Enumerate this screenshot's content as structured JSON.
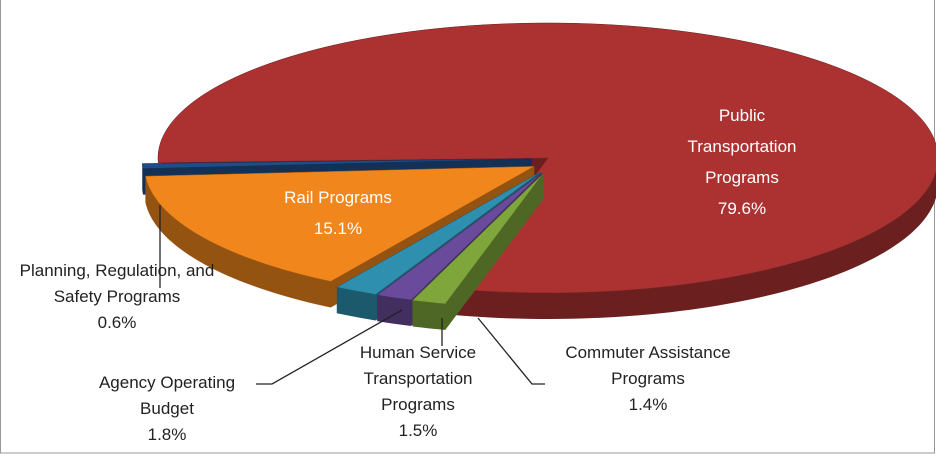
{
  "chart_data": {
    "type": "pie",
    "categories": [
      "Public Transportation Programs",
      "Rail Programs",
      "Planning, Regulation, and Safety Programs",
      "Agency Operating Budget",
      "Human Service Transportation Programs",
      "Commuter Assistance Programs"
    ],
    "values": [
      79.6,
      15.1,
      0.6,
      1.8,
      1.5,
      1.4
    ],
    "value_labels": [
      "79.6%",
      "15.1%",
      "0.6%",
      "1.8%",
      "1.5%",
      "1.4%"
    ],
    "colors": [
      "#ac3232",
      "#f0861c",
      "#1f4d8a",
      "#2f8fae",
      "#6a4a9a",
      "#7ea63a"
    ]
  }
}
